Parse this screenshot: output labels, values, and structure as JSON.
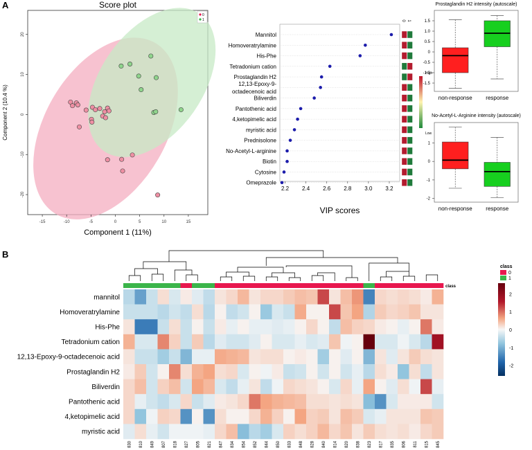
{
  "panel_labels": {
    "a": "A",
    "b": "B"
  },
  "colors": {
    "class0": "#e8174e",
    "class1": "#3bb54a",
    "ellipse0": "#f4aec0",
    "ellipse1": "#c7e9c6",
    "pt0": "#ee8fa3",
    "pt1": "#8fd48c",
    "vip_dot": "#1c1cab",
    "box_red": "#ff1f1f",
    "box_green": "#17cf1f",
    "heat_low": "#2b63a0",
    "heat_mid": "#f2f2f2",
    "heat_high": "#7a0010"
  },
  "chart_data": [
    {
      "id": "score_plot",
      "type": "scatter",
      "title": "Score plot",
      "xlabel": "Component 1 (11%)",
      "ylabel": "Component 2 (10.4 %)",
      "xlim": [
        -18,
        19
      ],
      "ylim": [
        -25,
        26
      ],
      "xticks": [
        -15,
        -10,
        -5,
        0,
        5,
        10,
        15
      ],
      "yticks": [
        -20,
        -10,
        0,
        10,
        20
      ],
      "legend": [
        "0",
        "1"
      ],
      "series": [
        {
          "name": "0",
          "points": [
            [
              -9.2,
              3.1
            ],
            [
              -8.8,
              2.2
            ],
            [
              -8.0,
              2.9
            ],
            [
              -7.7,
              2.4
            ],
            [
              -7.4,
              -3.1
            ],
            [
              -6.0,
              1.1
            ],
            [
              -4.9,
              -1.2
            ],
            [
              -4.8,
              -1.9
            ],
            [
              -4.7,
              1.8
            ],
            [
              -4.1,
              1.2
            ],
            [
              -3.2,
              1.5
            ],
            [
              -2.6,
              -0.4
            ],
            [
              -2.2,
              0.7
            ],
            [
              -2.0,
              -0.8
            ],
            [
              -1.6,
              1.6
            ],
            [
              -1.6,
              -11.3
            ],
            [
              -1.3,
              0.9
            ],
            [
              1.3,
              -11.2
            ],
            [
              1.5,
              -14.1
            ],
            [
              3.5,
              -10.1
            ],
            [
              8.7,
              -20.1
            ]
          ]
        },
        {
          "name": "1",
          "points": [
            [
              1.2,
              12.1
            ],
            [
              3.0,
              12.6
            ],
            [
              4.8,
              9.6
            ],
            [
              5.3,
              6.2
            ],
            [
              7.3,
              14.6
            ],
            [
              7.9,
              0.5
            ],
            [
              8.3,
              0.7
            ],
            [
              8.4,
              9.2
            ],
            [
              13.5,
              1.2
            ]
          ]
        }
      ],
      "ellipses": [
        {
          "name": "0",
          "cx": -2.0,
          "cy": -3.5,
          "rx": 12.5,
          "ry": 13.0,
          "angle": 30
        },
        {
          "name": "1",
          "cx": 7.5,
          "cy": 8.0,
          "rx": 10.5,
          "ry": 11.0,
          "angle": 35
        }
      ]
    },
    {
      "id": "vip",
      "type": "scatter",
      "xlabel": "VIP scores",
      "xlim": [
        2.15,
        3.3
      ],
      "xticks": [
        2.2,
        2.4,
        2.6,
        2.8,
        3.0,
        3.2
      ],
      "class_labels": [
        "0",
        "1"
      ],
      "scale_high": "High",
      "scale_low": "Low",
      "features": [
        {
          "name": "Mannitol",
          "vip": 3.22,
          "c0": "#b31b2e",
          "c1": "#1f7a3b"
        },
        {
          "name": "Homoveratrylamine",
          "vip": 2.97,
          "c0": "#b31b2e",
          "c1": "#1f7a3b"
        },
        {
          "name": "His-Phe",
          "vip": 2.92,
          "c0": "#b31b2e",
          "c1": "#1f7a3b"
        },
        {
          "name": "Tetradonium cation",
          "vip": 2.63,
          "c0": "#1f7a3b",
          "c1": "#b31b2e"
        },
        {
          "name": "Prostaglandin H2",
          "vip": 2.55,
          "c0": "#1f7a3b",
          "c1": "#b31b2e"
        },
        {
          "name": "12,13-Epoxy-9-\noctadecenoic acid",
          "vip": 2.54,
          "c0": "#b31b2e",
          "c1": "#1f7a3b"
        },
        {
          "name": "Biliverdin",
          "vip": 2.48,
          "c0": "#b31b2e",
          "c1": "#1f7a3b"
        },
        {
          "name": "Pantothenic acid",
          "vip": 2.35,
          "c0": "#b31b2e",
          "c1": "#1f7a3b"
        },
        {
          "name": "4,ketopimelic acid",
          "vip": 2.32,
          "c0": "#b31b2e",
          "c1": "#1f7a3b"
        },
        {
          "name": "myristic acid",
          "vip": 2.29,
          "c0": "#b31b2e",
          "c1": "#1f7a3b"
        },
        {
          "name": "Prednisolone",
          "vip": 2.25,
          "c0": "#b31b2e",
          "c1": "#1f7a3b"
        },
        {
          "name": "No-Acetyl-L-arginine",
          "vip": 2.22,
          "c0": "#b31b2e",
          "c1": "#1f7a3b"
        },
        {
          "name": "Biotin",
          "vip": 2.22,
          "c0": "#b31b2e",
          "c1": "#1f7a3b"
        },
        {
          "name": "Cytosine",
          "vip": 2.19,
          "c0": "#b31b2e",
          "c1": "#1f7a3b"
        },
        {
          "name": "Omeprazole",
          "vip": 2.17,
          "c0": "#b31b2e",
          "c1": "#1f7a3b"
        }
      ]
    },
    {
      "id": "box_prostaglandin",
      "type": "box",
      "title": "Prostaglandin H2 intensity (autoscale)",
      "ylim": [
        -1.9,
        2.0
      ],
      "yticks": [
        -1.5,
        -1.0,
        -0.5,
        0,
        0.5,
        1.0,
        1.5
      ],
      "ytick_labels": [
        "-1.5",
        "-1.0",
        "-0.5",
        "0",
        "0.5",
        "1.0",
        "1.5"
      ],
      "categories": [
        "non-response",
        "response"
      ],
      "boxes": [
        {
          "name": "non-response",
          "min": -1.75,
          "q1": -1.0,
          "median": -0.18,
          "q3": 0.2,
          "max": 1.55
        },
        {
          "name": "response",
          "min": -1.3,
          "q1": 0.25,
          "median": 0.9,
          "q3": 1.5,
          "max": 1.75
        }
      ]
    },
    {
      "id": "box_arginine",
      "type": "box",
      "title": "No-Acetyl-L-Arginine intensity (autoscale)",
      "ylim": [
        -2.2,
        2.1
      ],
      "yticks": [
        -2,
        -1,
        0,
        1
      ],
      "ytick_labels": [
        "-2",
        "-1",
        "0",
        "1"
      ],
      "categories": [
        "non-response",
        "response"
      ],
      "boxes": [
        {
          "name": "non-response",
          "min": -1.45,
          "q1": -0.4,
          "median": 0.07,
          "q3": 1.05,
          "max": 1.85
        },
        {
          "name": "response",
          "min": -1.95,
          "q1": -1.35,
          "median": -0.55,
          "q3": -0.05,
          "max": 1.3
        }
      ]
    },
    {
      "id": "heatmap",
      "type": "heatmap",
      "rows": [
        "mannitol",
        "Homoveratrylamine",
        "His-Phe",
        "Tetradonium cation",
        "12,13-Epoxy-9-octadecenoic acid",
        "Prostaglandin H2",
        "Biliverdin",
        "Pantothenic acid",
        "4,ketopimelic acid",
        "myristic acid"
      ],
      "columns": [
        "830",
        "810",
        "849",
        "807",
        "818",
        "827",
        "805",
        "821",
        "847",
        "834",
        "854",
        "852",
        "844",
        "850",
        "833",
        "848",
        "828",
        "840",
        "814",
        "820",
        "838",
        "823",
        "817",
        "835",
        "806",
        "811",
        "815",
        "845"
      ],
      "column_class": [
        1,
        1,
        1,
        1,
        1,
        0,
        1,
        1,
        0,
        0,
        0,
        0,
        0,
        0,
        0,
        0,
        0,
        0,
        0,
        0,
        0,
        1,
        0,
        0,
        0,
        0,
        0,
        0
      ],
      "values": [
        [
          -0.8,
          -1.8,
          -0.6,
          0.4,
          -0.4,
          0.2,
          -0.3,
          -0.7,
          0.3,
          0.5,
          1.0,
          0.3,
          0.5,
          0.5,
          0.7,
          0.9,
          0.8,
          1.9,
          0.3,
          0.9,
          1.4,
          -2.2,
          0.5,
          0.4,
          0.5,
          0.4,
          0.2,
          1.1
        ],
        [
          -0.6,
          -0.6,
          -0.6,
          -0.8,
          -0.5,
          -0.7,
          0.4,
          -0.8,
          0.1,
          -0.7,
          -0.5,
          0.1,
          -1.2,
          -0.4,
          -0.6,
          1.2,
          0.1,
          0.1,
          1.9,
          0.8,
          1.3,
          -0.9,
          0.7,
          0.5,
          0.6,
          0.8,
          0.3,
          0.3
        ],
        [
          0.3,
          -2.3,
          -2.3,
          -0.6,
          0.4,
          -0.6,
          0.1,
          -0.6,
          0.2,
          -0.2,
          0.1,
          -0.2,
          -0.2,
          -0.3,
          -0.2,
          0.1,
          0.5,
          0.1,
          -0.7,
          0.9,
          0.6,
          0.5,
          0.2,
          0.1,
          -0.2,
          0.1,
          1.6,
          0.2
        ],
        [
          1.1,
          -0.4,
          -0.4,
          1.5,
          0.6,
          -0.6,
          0.7,
          -0.8,
          -0.3,
          -0.5,
          -0.5,
          -0.3,
          0.1,
          -0.4,
          -0.4,
          -0.2,
          -0.4,
          -0.3,
          0.8,
          -0.1,
          0.1,
          3.0,
          -0.4,
          -0.4,
          -0.1,
          -0.4,
          -0.8,
          2.3
        ],
        [
          0.3,
          -0.6,
          -0.6,
          -1.1,
          -0.6,
          -1.5,
          -0.2,
          -0.2,
          1.2,
          1.1,
          1.0,
          0.3,
          0.4,
          0.4,
          0.1,
          0.2,
          0.1,
          -1.1,
          0.1,
          -0.3,
          0.1,
          -1.5,
          0.3,
          -0.3,
          0.3,
          0.7,
          0.4,
          0.3
        ],
        [
          0.2,
          0.7,
          -0.5,
          0.1,
          1.5,
          0.4,
          1.1,
          1.3,
          0.4,
          0.5,
          -0.4,
          0.1,
          -0.1,
          0.2,
          -0.6,
          -0.5,
          0.1,
          -0.5,
          0.1,
          -0.5,
          -0.2,
          -0.8,
          0.4,
          0.2,
          -1.3,
          0.4,
          -0.7,
          0.3
        ],
        [
          0.5,
          0.9,
          -0.5,
          0.6,
          0.9,
          -0.5,
          1.3,
          1.0,
          -0.4,
          -0.7,
          -0.2,
          0.3,
          -0.7,
          -0.1,
          0.5,
          0.4,
          0.3,
          0.1,
          -0.4,
          0.5,
          -0.2,
          1.3,
          0.1,
          -0.3,
          0.4,
          -0.1,
          1.9,
          -0.2
        ],
        [
          0.5,
          -0.2,
          -0.5,
          -0.7,
          -0.4,
          0.5,
          -0.6,
          -0.3,
          0.2,
          0.3,
          0.5,
          1.6,
          1.3,
          1.1,
          1.0,
          0.9,
          0.4,
          0.4,
          0.3,
          0.4,
          0.3,
          -1.4,
          -2.0,
          -0.4,
          0.2,
          0.2,
          0.2,
          -0.5
        ],
        [
          0.5,
          -1.3,
          -0.1,
          0.6,
          0.5,
          -2.0,
          0.1,
          -2.0,
          0.4,
          0.1,
          0.1,
          0.5,
          1.1,
          0.6,
          0.1,
          1.3,
          0.6,
          0.7,
          0.3,
          0.9,
          0.7,
          -0.4,
          -0.2,
          0.3,
          0.3,
          0.3,
          0.8,
          0.7
        ],
        [
          -0.3,
          0.4,
          -0.2,
          -0.5,
          -0.1,
          -0.1,
          -0.1,
          -0.2,
          0.5,
          0.9,
          -1.4,
          -0.8,
          -1.1,
          -0.4,
          0.6,
          0.4,
          0.6,
          1.0,
          0.5,
          0.8,
          0.3,
          0.7,
          0.4,
          0.3,
          0.4,
          0.2,
          0.5,
          0.7
        ]
      ],
      "class_label": "class",
      "legend_title": "class",
      "legend_entries": [
        "0",
        "1"
      ],
      "scale_ticks": [
        2,
        1,
        0,
        -1,
        -2
      ],
      "scale_tick_labels": [
        "2",
        "1",
        "0",
        "-1",
        "-2"
      ],
      "scale_range": [
        -2.6,
        2.6
      ]
    }
  ]
}
